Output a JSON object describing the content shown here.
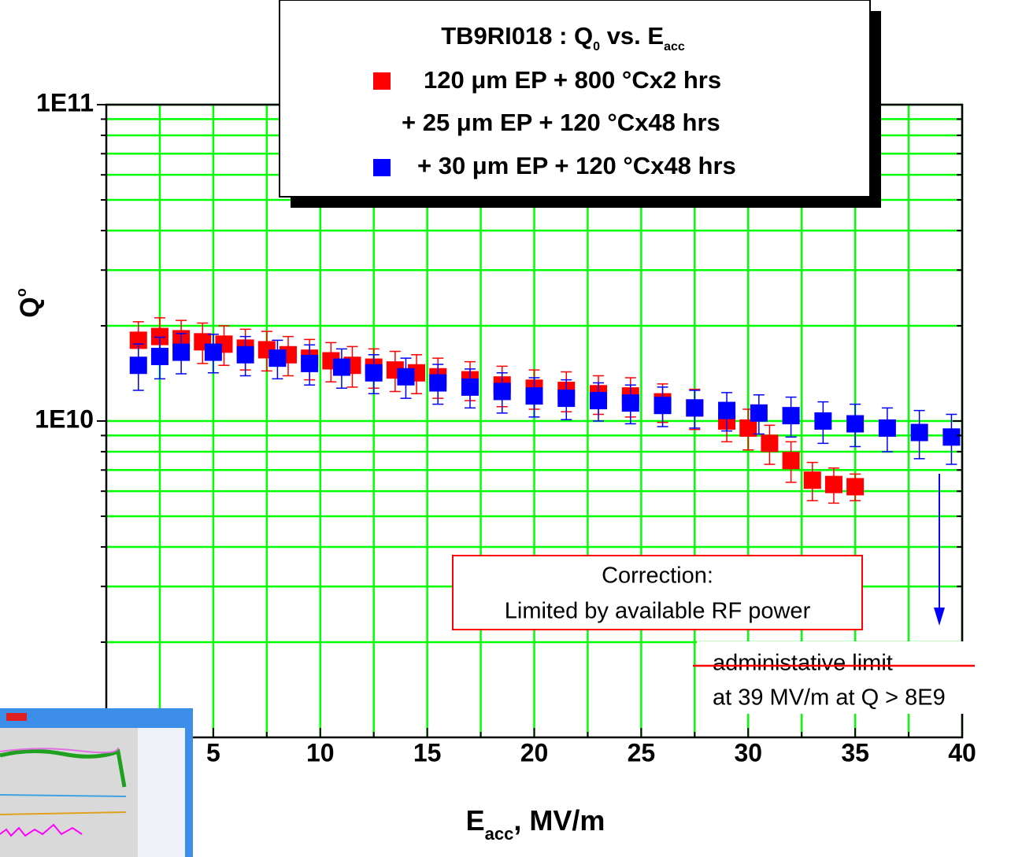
{
  "chart_data": {
    "type": "scatter",
    "title": [
      "TB9RI018 : Q",
      "0",
      " vs. E",
      "acc"
    ],
    "xlabel": [
      "E",
      "acc",
      ", MV/m"
    ],
    "ylabel": [
      "Q",
      "o"
    ],
    "log_y": true,
    "grid": true,
    "grid_color": "#00ff00",
    "xlim": [
      0,
      40
    ],
    "ylim": [
      1000000000.0,
      100000000000.0
    ],
    "xticks": [
      5,
      10,
      15,
      20,
      25,
      30,
      35,
      40
    ],
    "x_minor_ticks": [
      2.5,
      7.5,
      12.5,
      17.5,
      22.5,
      27.5,
      32.5,
      37.5
    ],
    "yticks": [
      {
        "value": 10000000000.0,
        "label": "1E10"
      },
      {
        "value": 100000000000.0,
        "label": "1E11"
      }
    ],
    "y_minor_ticks": [
      2000000000.0,
      3000000000.0,
      4000000000.0,
      5000000000.0,
      6000000000.0,
      7000000000.0,
      8000000000.0,
      9000000000.0,
      20000000000.0,
      30000000000.0,
      40000000000.0,
      50000000000.0,
      60000000000.0,
      70000000000.0,
      80000000000.0,
      90000000000.0
    ],
    "series": [
      {
        "name": "120 μm EP + 800 °Cx2 hrs",
        "color": "#ff0000",
        "x": [
          1.5,
          2.5,
          3.5,
          4.5,
          5.5,
          6.5,
          7.5,
          8.5,
          9.5,
          10.5,
          11.5,
          12.5,
          13.5,
          14.5,
          15.5,
          17,
          18.5,
          20,
          21.5,
          23,
          24.5,
          26,
          27.5,
          29,
          30,
          31,
          32,
          33,
          34,
          35
        ],
        "values": [
          18000000000.0,
          18500000000.0,
          18200000000.0,
          17800000000.0,
          17500000000.0,
          17000000000.0,
          16800000000.0,
          16200000000.0,
          15800000000.0,
          15500000000.0,
          15000000000.0,
          14800000000.0,
          14500000000.0,
          14200000000.0,
          13800000000.0,
          13500000000.0,
          13000000000.0,
          12700000000.0,
          12500000000.0,
          12200000000.0,
          12000000000.0,
          11500000000.0,
          11000000000.0,
          10000000000.0,
          9500000000.0,
          8500000000.0,
          7500000000.0,
          6500000000.0,
          6300000000.0,
          6200000000.0
        ],
        "errors": [
          2600000000.0,
          2700000000.0,
          2600000000.0,
          2600000000.0,
          2500000000.0,
          2500000000.0,
          2400000000.0,
          2300000000.0,
          2300000000.0,
          2200000000.0,
          2200000000.0,
          2100000000.0,
          2100000000.0,
          2000000000.0,
          2000000000.0,
          1900000000.0,
          1900000000.0,
          1800000000.0,
          1800000000.0,
          1700000000.0,
          1700000000.0,
          1600000000.0,
          1600000000.0,
          1400000000.0,
          1400000000.0,
          1200000000.0,
          1100000000.0,
          900000000.0,
          800000000.0,
          600000000.0
        ]
      },
      {
        "name": "+ 30 μm EP + 120 °Cx48 hrs",
        "color": "#0000ff",
        "x": [
          1.5,
          2.5,
          3.5,
          5,
          6.5,
          8,
          9.5,
          11,
          12.5,
          14,
          15.5,
          17,
          18.5,
          20,
          21.5,
          23,
          24.5,
          26,
          27.5,
          29,
          30.5,
          32,
          33.5,
          35,
          36.5,
          38,
          39.5
        ],
        "values": [
          15000000000.0,
          16000000000.0,
          16500000000.0,
          16500000000.0,
          16200000000.0,
          15800000000.0,
          15200000000.0,
          14800000000.0,
          14200000000.0,
          13800000000.0,
          13200000000.0,
          12800000000.0,
          12400000000.0,
          12000000000.0,
          11800000000.0,
          11600000000.0,
          11400000000.0,
          11200000000.0,
          11000000000.0,
          10800000000.0,
          10600000000.0,
          10400000000.0,
          10000000000.0,
          9800000000.0,
          9500000000.0,
          9200000000.0,
          8900000000.0
        ],
        "errors": [
          2500000000.0,
          2400000000.0,
          2400000000.0,
          2300000000.0,
          2300000000.0,
          2200000000.0,
          2200000000.0,
          2100000000.0,
          2000000000.0,
          2000000000.0,
          1900000000.0,
          1800000000.0,
          1800000000.0,
          1700000000.0,
          1700000000.0,
          1600000000.0,
          1600000000.0,
          1600000000.0,
          1500000000.0,
          1500000000.0,
          1500000000.0,
          1500000000.0,
          1500000000.0,
          1500000000.0,
          1500000000.0,
          1600000000.0,
          1600000000.0
        ]
      }
    ],
    "legend_extra": "+ 25 μm EP + 120 °Cx48 hrs",
    "annotations": {
      "correction": [
        "Correction:",
        "Limited by available RF power"
      ],
      "limit": [
        "administative limit",
        "at 39 MV/m at Q > 8E9"
      ]
    }
  }
}
